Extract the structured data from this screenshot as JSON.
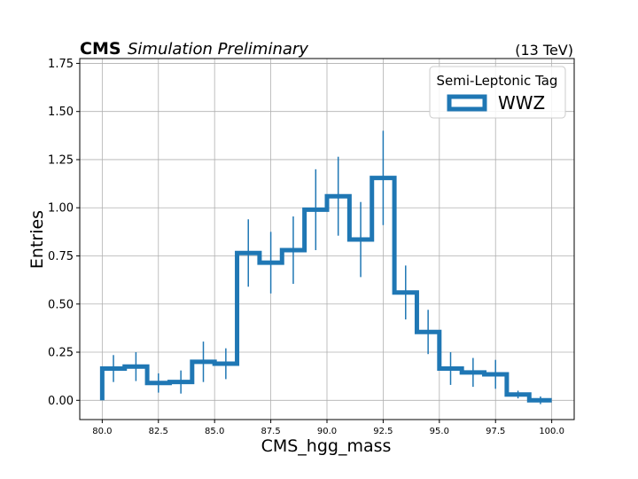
{
  "header": {
    "experiment": "CMS",
    "status": "Simulation Preliminary",
    "energy": "(13 TeV)"
  },
  "chart_data": {
    "type": "histogram",
    "xlabel": "CMS_hgg_mass",
    "ylabel": "Entries",
    "xlim": [
      79,
      101
    ],
    "ylim": [
      -0.1,
      1.775
    ],
    "x_ticks": [
      80.0,
      82.5,
      85.0,
      87.5,
      90.0,
      92.5,
      95.0,
      97.5,
      100.0
    ],
    "x_tick_labels": [
      "80.0",
      "82.5",
      "85.0",
      "87.5",
      "90.0",
      "92.5",
      "95.0",
      "97.5",
      "100.0"
    ],
    "y_ticks": [
      0.0,
      0.25,
      0.5,
      0.75,
      1.0,
      1.25,
      1.5,
      1.75
    ],
    "y_tick_labels": [
      "0.00",
      "0.25",
      "0.50",
      "0.75",
      "1.00",
      "1.25",
      "1.50",
      "1.75"
    ],
    "grid": true,
    "legend": {
      "title": "Semi-Leptonic Tag",
      "placement": "top-right"
    },
    "series": [
      {
        "name": "WWZ",
        "color": "#1f77b4",
        "bin_edges": [
          80,
          81,
          82,
          83,
          84,
          85,
          86,
          87,
          88,
          89,
          90,
          91,
          92,
          93,
          94,
          95,
          96,
          97,
          98,
          99,
          100
        ],
        "values": [
          0.165,
          0.175,
          0.09,
          0.095,
          0.2,
          0.19,
          0.765,
          0.715,
          0.78,
          0.99,
          1.06,
          0.835,
          1.155,
          0.56,
          0.355,
          0.165,
          0.145,
          0.135,
          0.03,
          0.0
        ],
        "errors": [
          0.07,
          0.075,
          0.05,
          0.06,
          0.105,
          0.08,
          0.175,
          0.16,
          0.175,
          0.21,
          0.205,
          0.195,
          0.245,
          0.14,
          0.115,
          0.085,
          0.075,
          0.075,
          0.02,
          0.02
        ]
      }
    ]
  }
}
